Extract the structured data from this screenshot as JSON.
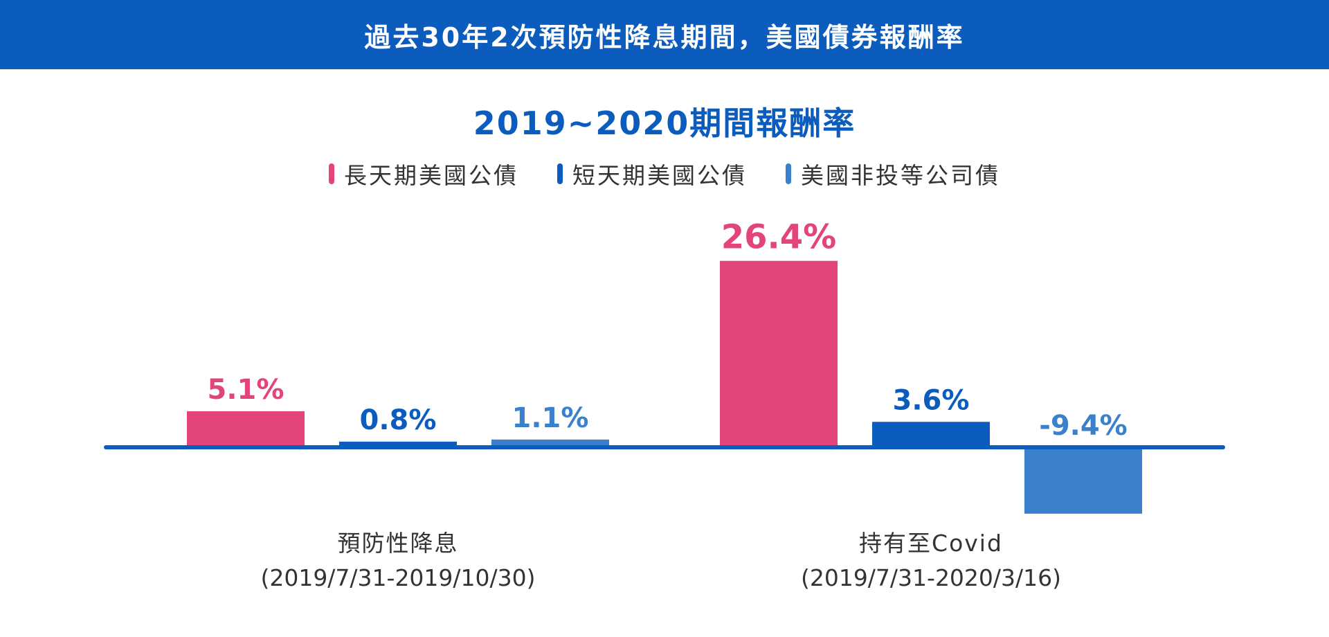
{
  "header": {
    "title": "過去30年2次預防性降息期間，美國債券報酬率"
  },
  "chart_data": {
    "type": "bar",
    "title": "2019~2020期間報酬率",
    "categories": [
      {
        "name": "預防性降息",
        "range": "(2019/7/31-2019/10/30)"
      },
      {
        "name": "持有至Covid",
        "range": "(2019/7/31-2020/3/16)"
      }
    ],
    "series": [
      {
        "name": "長天期美國公債",
        "color": "#e3447a",
        "values": [
          5.1,
          26.4
        ],
        "labels": [
          "5.1%",
          "26.4%"
        ]
      },
      {
        "name": "短天期美國公債",
        "color": "#0b5cbc",
        "values": [
          0.8,
          3.6
        ],
        "labels": [
          "0.8%",
          "3.6%"
        ]
      },
      {
        "name": "美國非投等公司債",
        "color": "#3a80cb",
        "values": [
          1.1,
          -9.4
        ],
        "labels": [
          "1.1%",
          "-9.4%"
        ]
      }
    ]
  }
}
